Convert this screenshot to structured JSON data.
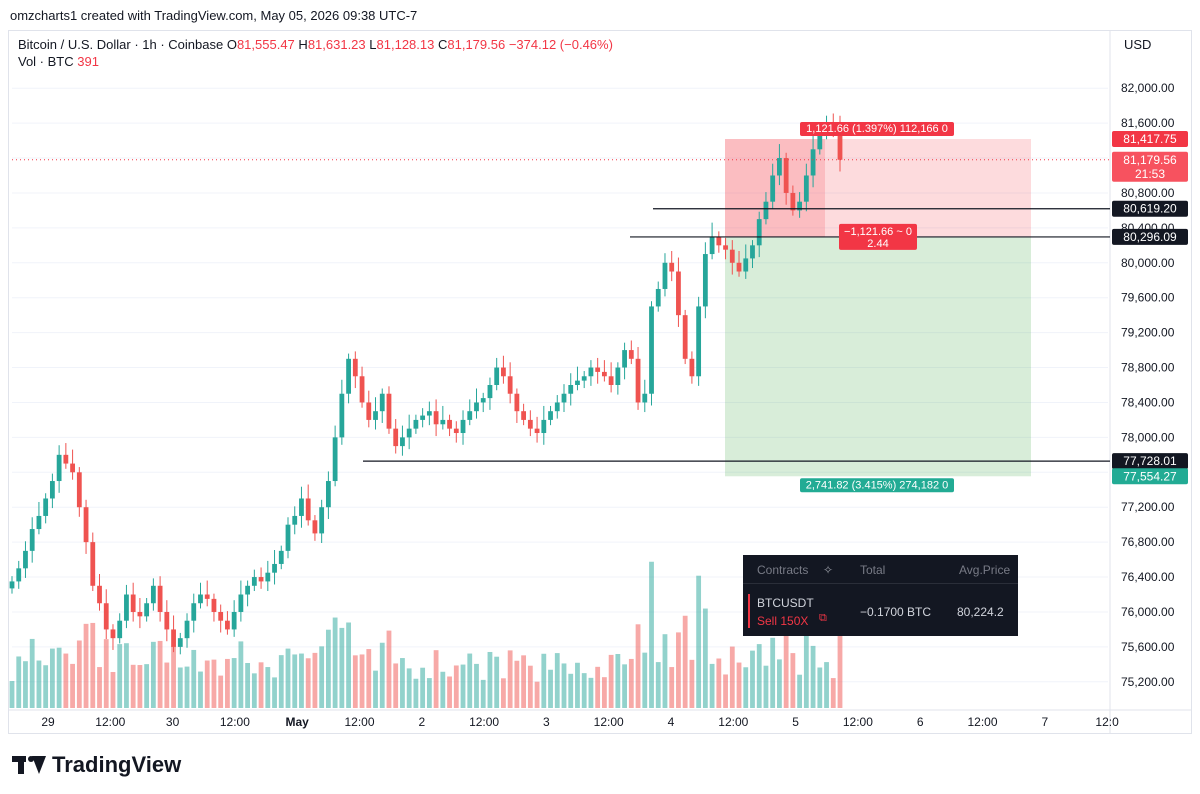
{
  "header": {
    "credit": "omzcharts1 created with TradingView.com, May 05, 2026 09:38 UTC-7",
    "symbol": "Bitcoin / U.S. Dollar · 1h · Coinbase",
    "o_label": "O",
    "o_value": "81,555.47",
    "h_label": "H",
    "h_value": "81,631.23",
    "l_label": "L",
    "l_value": "81,128.13",
    "c_label": "C",
    "c_value": "81,179.56",
    "change": "−374.12 (−0.46%)",
    "vol_label": "Vol · BTC",
    "vol_value": "391"
  },
  "axis": {
    "unit": "USD"
  },
  "chart_data": {
    "type": "candlestick",
    "ylim": [
      74900,
      82300
    ],
    "y_ticks": [
      75200,
      75600,
      76000,
      76400,
      76800,
      77200,
      77600,
      78000,
      78400,
      78800,
      79200,
      79600,
      80000,
      80400,
      80800,
      81200,
      81600,
      82000
    ],
    "y_tick_labels": [
      "75,200.00",
      "75,600.00",
      "76,000.00",
      "76,400.00",
      "76,800.00",
      "77,200.00",
      "77,600.00",
      "78,000.00",
      "78,400.00",
      "78,800.00",
      "79,200.00",
      "79,600.00",
      "80,000.00",
      "80,400.00",
      "80,800.00",
      "81,200.00",
      "81,600.00",
      "82,000.00"
    ],
    "x_ticks": [
      "29",
      "12:00",
      "30",
      "12:00",
      "May",
      "12:00",
      "2",
      "12:00",
      "3",
      "12:00",
      "4",
      "12:00",
      "5",
      "12:00",
      "6",
      "12:00",
      "7",
      "12:0"
    ],
    "candles_close": [
      76350,
      76500,
      76700,
      76950,
      77100,
      77300,
      77500,
      77800,
      77700,
      77600,
      77200,
      76800,
      76300,
      76100,
      75800,
      75700,
      75900,
      76200,
      76000,
      75950,
      76100,
      76300,
      76000,
      75800,
      75600,
      75700,
      75900,
      76100,
      76200,
      76150,
      76000,
      75900,
      75800,
      76000,
      76200,
      76300,
      76400,
      76350,
      76450,
      76550,
      76700,
      77000,
      77100,
      77300,
      77050,
      76900,
      77200,
      77500,
      78000,
      78500,
      78900,
      78700,
      78400,
      78200,
      78300,
      78500,
      78100,
      77900,
      78000,
      78100,
      78200,
      78250,
      78300,
      78150,
      78200,
      78100,
      78050,
      78200,
      78300,
      78400,
      78450,
      78600,
      78800,
      78700,
      78500,
      78300,
      78200,
      78100,
      78050,
      78200,
      78300,
      78400,
      78500,
      78600,
      78650,
      78700,
      78800,
      78750,
      78700,
      78600,
      78800,
      79000,
      78900,
      78400,
      78500,
      79500,
      79700,
      80000,
      79900,
      79400,
      78900,
      78700,
      79500,
      80100,
      80300,
      80200,
      80150,
      80000,
      79900,
      80050,
      80200,
      80500,
      80700,
      81000,
      81200,
      80800,
      80600,
      80700,
      81000,
      81300,
      81500,
      81600,
      81550,
      81180
    ],
    "volume_max": 391,
    "horizontal_lines": [
      {
        "price": 80619.2,
        "label": "80,619.20"
      },
      {
        "price": 80296.09,
        "label": "80,296.09"
      },
      {
        "price": 77728.01,
        "label": "77,728.01"
      }
    ],
    "price_labels": [
      {
        "price": 81417.75,
        "label": "81,417.75",
        "color": "#f23645"
      },
      {
        "price": 81179.56,
        "label": "81,179.56",
        "sub": "21:53",
        "color": "#f7525f"
      },
      {
        "price": 77554.27,
        "label": "77,554.27",
        "color": "#22ab94"
      }
    ],
    "position_tool": {
      "entry": 80296.09,
      "stop": 81417.75,
      "target": 77554.27,
      "stop_label": "1,121.66 (1.397%) 112,166 0",
      "pnl_label": "−1,121.66 ~ 0",
      "rr_label": "2.44",
      "target_label": "2,741.82 (3.415%) 274,182 0"
    }
  },
  "positions": {
    "col_contracts": "Contracts",
    "col_total": "Total",
    "col_avg": "Avg.Price",
    "symbol": "BTCUSDT",
    "side": "Sell 150X",
    "total": "−0.1700 BTC",
    "avg_price": "80,224.2"
  },
  "brand": {
    "name": "TradingView",
    "up_color": "#26a69a",
    "down_color": "#ef5350"
  }
}
